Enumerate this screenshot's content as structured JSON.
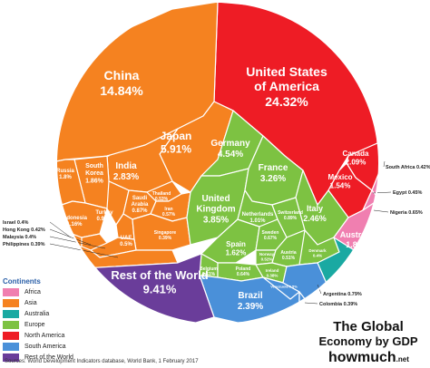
{
  "legend": {
    "title": "Continents",
    "items": [
      {
        "label": "Africa",
        "color": "#f07fb0"
      },
      {
        "label": "Asia",
        "color": "#f58220"
      },
      {
        "label": "Australia",
        "color": "#1aa9a2"
      },
      {
        "label": "Europe",
        "color": "#7dc242"
      },
      {
        "label": "North America",
        "color": "#ee1c25"
      },
      {
        "label": "South America",
        "color": "#4a90d9"
      },
      {
        "label": "Rest of the World",
        "color": "#6a3d9a"
      }
    ]
  },
  "brand": {
    "name": "howmuch",
    "suffix": ".net"
  },
  "chart_data": {
    "type": "voronoi-treemap",
    "title_line1": "The Global",
    "title_line2": "Economy by GDP",
    "source": "Sources: World Development Indicators database, World Bank, 1 February 2017",
    "unit": "% of world GDP",
    "countries": [
      {
        "name": "United States of America",
        "value": 24.32,
        "label": "24.32%",
        "continent": "North America"
      },
      {
        "name": "Canada",
        "value": 2.09,
        "label": "2.09%",
        "continent": "North America"
      },
      {
        "name": "Mexico",
        "value": 1.54,
        "label": "1.54%",
        "continent": "North America"
      },
      {
        "name": "China",
        "value": 14.84,
        "label": "14.84%",
        "continent": "Asia"
      },
      {
        "name": "Japan",
        "value": 5.91,
        "label": "5.91%",
        "continent": "Asia"
      },
      {
        "name": "India",
        "value": 2.83,
        "label": "2.83%",
        "continent": "Asia"
      },
      {
        "name": "South Korea",
        "value": 1.86,
        "label": "1.86%",
        "continent": "Asia"
      },
      {
        "name": "Russia",
        "value": 1.8,
        "label": "1.8%",
        "continent": "Asia"
      },
      {
        "name": "Indonesia",
        "value": 1.16,
        "label": "1.16%",
        "continent": "Asia"
      },
      {
        "name": "Turkey",
        "value": 0.97,
        "label": "0.97%",
        "continent": "Asia"
      },
      {
        "name": "Saudi Arabia",
        "value": 0.87,
        "label": "0.87%",
        "continent": "Asia"
      },
      {
        "name": "Thailand",
        "value": 0.53,
        "label": "0.53%",
        "continent": "Asia"
      },
      {
        "name": "Iran",
        "value": 0.57,
        "label": "0.57%",
        "continent": "Asia"
      },
      {
        "name": "UAE",
        "value": 0.5,
        "label": "0.5%",
        "continent": "Asia"
      },
      {
        "name": "Singapore",
        "value": 0.39,
        "label": "0.39%",
        "continent": "Asia"
      },
      {
        "name": "Israel",
        "value": 0.4,
        "label": "0.4%",
        "continent": "Asia"
      },
      {
        "name": "Hong Kong",
        "value": 0.42,
        "label": "0.42%",
        "continent": "Asia"
      },
      {
        "name": "Malaysia",
        "value": 0.4,
        "label": "0.4%",
        "continent": "Asia"
      },
      {
        "name": "Philippines",
        "value": 0.39,
        "label": "0.39%",
        "continent": "Asia"
      },
      {
        "name": "Germany",
        "value": 4.54,
        "label": "4.54%",
        "continent": "Europe"
      },
      {
        "name": "United Kingdom",
        "value": 3.85,
        "label": "3.85%",
        "continent": "Europe"
      },
      {
        "name": "France",
        "value": 3.26,
        "label": "3.26%",
        "continent": "Europe"
      },
      {
        "name": "Italy",
        "value": 2.46,
        "label": "2.46%",
        "continent": "Europe"
      },
      {
        "name": "Spain",
        "value": 1.62,
        "label": "1.62%",
        "continent": "Europe"
      },
      {
        "name": "Netherlands",
        "value": 1.01,
        "label": "1.01%",
        "continent": "Europe"
      },
      {
        "name": "Switzerland",
        "value": 0.89,
        "label": "0.89%",
        "continent": "Europe"
      },
      {
        "name": "Sweden",
        "value": 0.67,
        "label": "0.67%",
        "continent": "Europe"
      },
      {
        "name": "Belgium",
        "value": 0.61,
        "label": "0.61%",
        "continent": "Europe"
      },
      {
        "name": "Norway",
        "value": 0.52,
        "label": "0.52%",
        "continent": "Europe"
      },
      {
        "name": "Poland",
        "value": 0.64,
        "label": "0.64%",
        "continent": "Europe"
      },
      {
        "name": "Austria",
        "value": 0.51,
        "label": "0.51%",
        "continent": "Europe"
      },
      {
        "name": "Ireland",
        "value": 0.38,
        "label": "0.38%",
        "continent": "Europe"
      },
      {
        "name": "Denmark",
        "value": 0.4,
        "label": "0.4%",
        "continent": "Europe"
      },
      {
        "name": "Australia",
        "value": 1.81,
        "label": "1.81%",
        "continent": "Australia"
      },
      {
        "name": "South Africa",
        "value": 0.42,
        "label": "0.42%",
        "continent": "Africa"
      },
      {
        "name": "Egypt",
        "value": 0.45,
        "label": "0.45%",
        "continent": "Africa"
      },
      {
        "name": "Nigeria",
        "value": 0.65,
        "label": "0.65%",
        "continent": "Africa"
      },
      {
        "name": "Brazil",
        "value": 2.39,
        "label": "2.39%",
        "continent": "South America"
      },
      {
        "name": "Argentina",
        "value": 0.79,
        "label": "0.79%",
        "continent": "South America"
      },
      {
        "name": "Colombia",
        "value": 0.39,
        "label": "0.39%",
        "continent": "South America"
      },
      {
        "name": "Venezuela",
        "value": 0.5,
        "label": "0.5%",
        "continent": "South America"
      },
      {
        "name": "Rest of the World",
        "value": 9.41,
        "label": "9.41%",
        "continent": "Rest of the World"
      }
    ]
  }
}
